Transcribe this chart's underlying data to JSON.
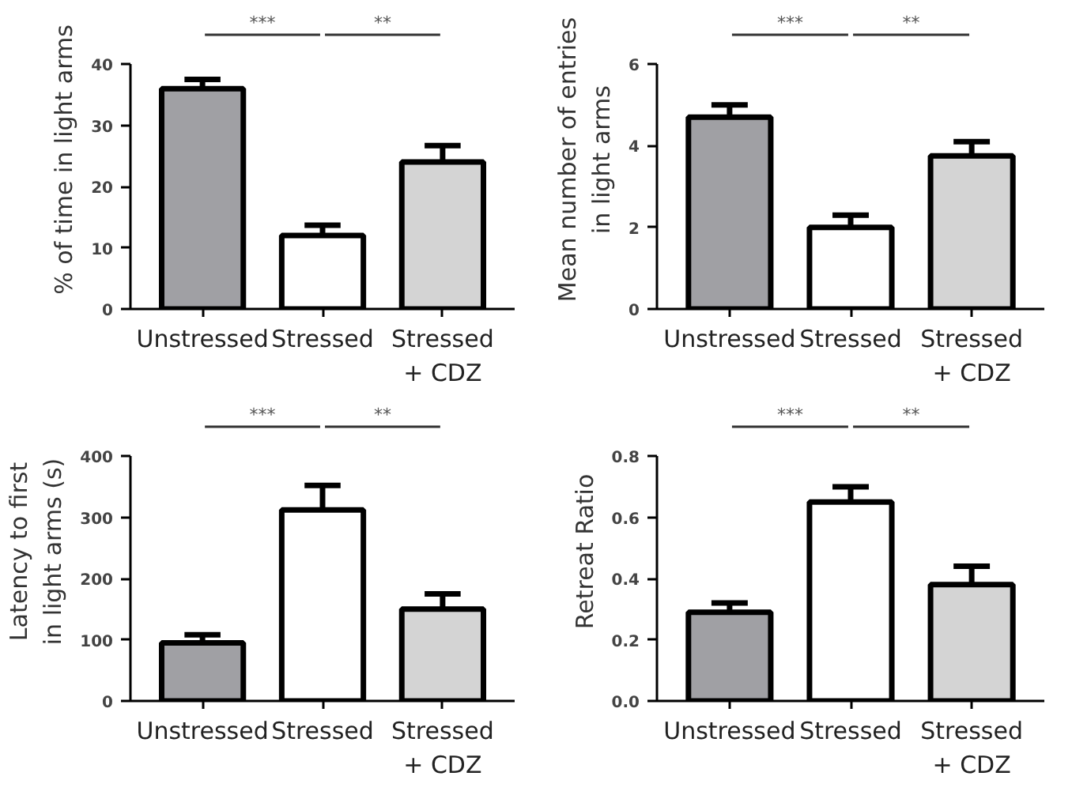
{
  "chart_data": [
    {
      "type": "bar",
      "ylabel": "% of time in light arms",
      "categories": [
        "Unstressed",
        "Stressed",
        "Stressed\n+ CDZ"
      ],
      "values": [
        36,
        12,
        24
      ],
      "colors": [
        "#a0a0a4",
        "#ffffff",
        "#d4d4d4"
      ],
      "errors": [
        [
          36,
          37.5
        ],
        [
          12,
          13.7
        ],
        [
          24,
          26.7
        ]
      ],
      "ylim": [
        0,
        40
      ],
      "yticks": [
        0,
        10,
        20,
        30,
        40
      ],
      "annotations": [
        "***",
        "**"
      ]
    },
    {
      "type": "bar",
      "ylabel": "Mean number of entries\nin light arms",
      "categories": [
        "Unstressed",
        "Stressed",
        "Stressed\n+ CDZ"
      ],
      "values": [
        4.7,
        2.0,
        3.75
      ],
      "colors": [
        "#a0a0a4",
        "#ffffff",
        "#d4d4d4"
      ],
      "errors": [
        [
          4.7,
          5.0
        ],
        [
          2.0,
          2.3
        ],
        [
          3.75,
          4.1
        ]
      ],
      "ylim": [
        0,
        6
      ],
      "yticks": [
        0,
        2,
        4,
        6
      ],
      "annotations": [
        "***",
        "**"
      ]
    },
    {
      "type": "bar",
      "ylabel": "Latency to first\nin light arms (s)",
      "categories": [
        "Unstressed",
        "Stressed",
        "Stressed\n+ CDZ"
      ],
      "values": [
        95,
        312,
        150
      ],
      "colors": [
        "#a0a0a4",
        "#ffffff",
        "#d4d4d4"
      ],
      "errors": [
        [
          95,
          108
        ],
        [
          312,
          352
        ],
        [
          150,
          175
        ]
      ],
      "ylim": [
        0,
        400
      ],
      "yticks": [
        0,
        100,
        200,
        300,
        400
      ],
      "annotations": [
        "***",
        "**"
      ]
    },
    {
      "type": "bar",
      "ylabel": "Retreat Ratio",
      "categories": [
        "Unstressed",
        "Stressed",
        "Stressed\n+ CDZ"
      ],
      "values": [
        0.29,
        0.65,
        0.38
      ],
      "colors": [
        "#a0a0a4",
        "#ffffff",
        "#d4d4d4"
      ],
      "errors": [
        [
          0.29,
          0.32
        ],
        [
          0.65,
          0.7
        ],
        [
          0.38,
          0.44
        ]
      ],
      "ylim": [
        0,
        0.8
      ],
      "yticks": [
        {
          "value": 0,
          "label": "0.0"
        },
        0.2,
        0.4,
        0.6,
        0.8
      ],
      "annotations": [
        "***",
        "**"
      ]
    }
  ]
}
